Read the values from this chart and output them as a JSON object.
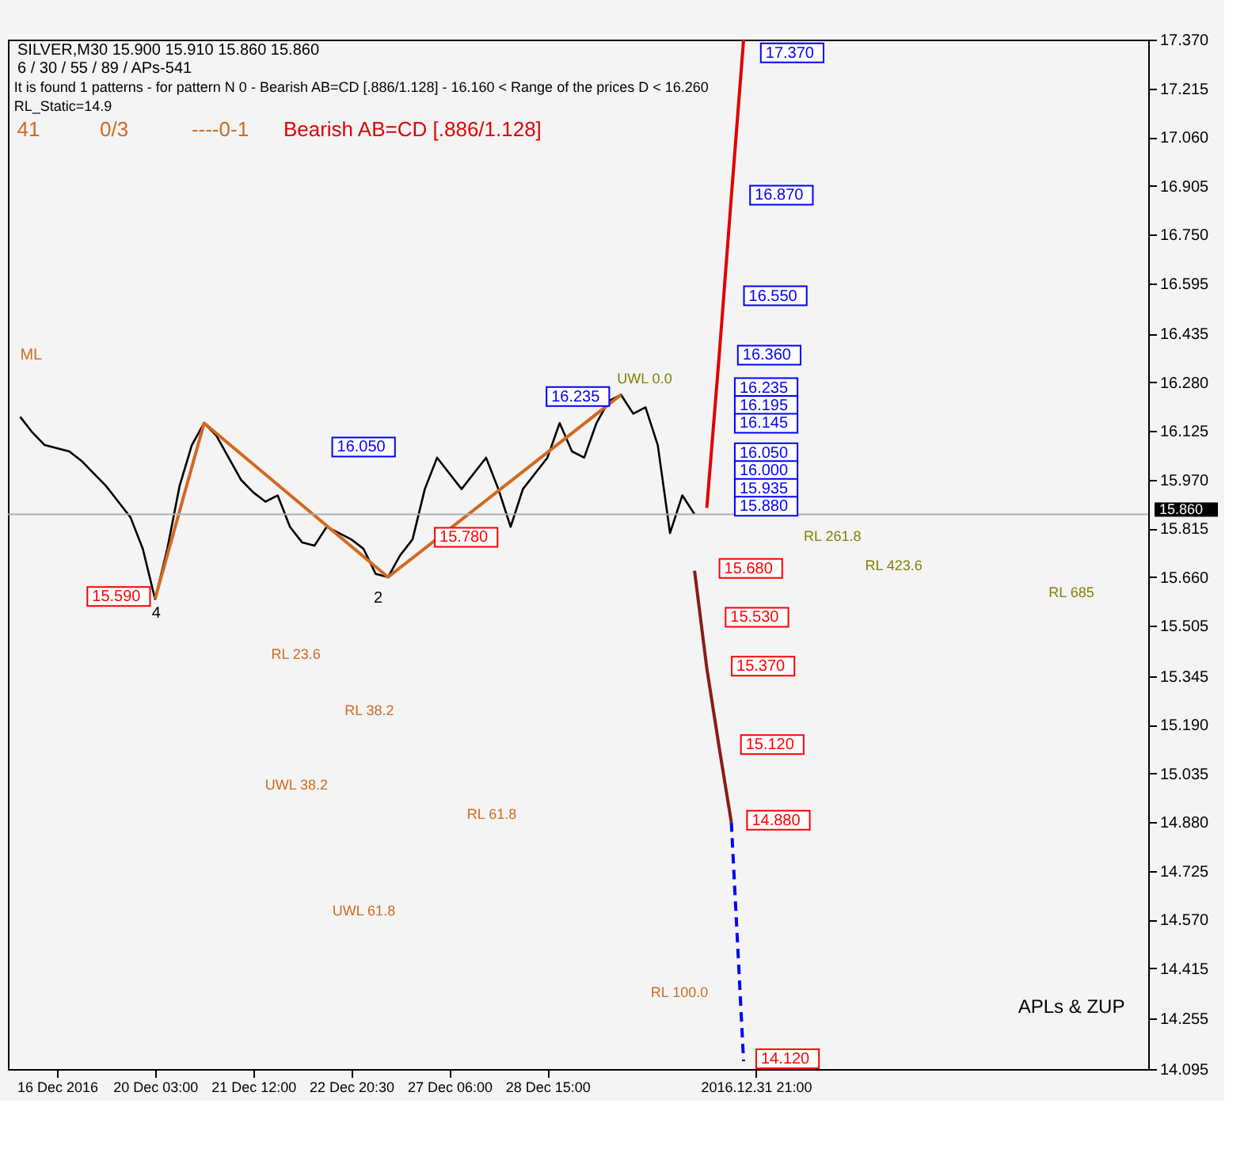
{
  "chart_data": {
    "type": "line",
    "title": "SILVER,M30  15.900 15.910 15.860 15.860",
    "subtitle": "6 / 30 / 55 / 89 / APs-541",
    "categories": [
      null,
      null,
      null,
      null,
      "16 Dec 2016",
      null,
      null,
      null,
      null,
      null,
      null,
      null,
      "20 Dec 03:00",
      null,
      null,
      null,
      null,
      null,
      null,
      null,
      "21 Dec 12:00",
      null,
      null,
      null,
      null,
      null,
      null,
      null,
      "22 Dec 20:30",
      null,
      null,
      null,
      null,
      null,
      null,
      null,
      "27 Dec 06:00",
      null,
      null,
      null,
      null,
      null,
      null,
      null,
      "28 Dec 15:00",
      null,
      null,
      null,
      null,
      null,
      null,
      null,
      null,
      null,
      null,
      null,
      null,
      null,
      null,
      null,
      null,
      "2016.12.31 21:00",
      null,
      null,
      null,
      null,
      null,
      null,
      null,
      null,
      null,
      null,
      null,
      null,
      null,
      null,
      null,
      null,
      null,
      null,
      null,
      null,
      null,
      null,
      null,
      null,
      null,
      null,
      null,
      null,
      null,
      null,
      null,
      null
    ],
    "series": [
      {
        "color": "#000000",
        "line_style": "solid",
        "values": [
          null,
          16.17,
          16.12,
          16.08,
          16.07,
          16.06,
          16.03,
          15.99,
          15.95,
          15.9,
          15.85,
          15.75,
          15.59,
          15.75,
          15.95,
          16.08,
          16.15,
          16.11,
          16.04,
          15.97,
          15.93,
          15.9,
          15.92,
          15.82,
          15.77,
          15.76,
          15.82,
          15.8,
          15.78,
          15.75,
          15.67,
          15.66,
          15.73,
          15.78,
          15.94,
          16.04,
          15.99,
          15.94,
          15.99,
          16.04,
          15.94,
          15.82,
          15.94,
          15.99,
          16.04,
          16.15,
          16.06,
          16.04,
          16.15,
          16.22,
          16.24,
          16.18,
          16.2,
          16.08,
          15.8,
          15.92,
          15.86,
          null,
          null,
          null,
          null,
          null,
          null,
          null,
          null,
          null,
          null,
          null,
          null,
          null,
          null,
          null,
          null,
          null,
          null,
          null,
          null,
          null,
          null,
          null,
          null,
          null,
          null,
          null,
          null,
          null,
          null,
          null,
          null,
          null,
          null,
          null,
          null,
          null
        ]
      },
      {
        "color": "#d2691e",
        "line_style": "solid",
        "values": [
          null,
          null,
          null,
          null,
          null,
          null,
          null,
          null,
          null,
          null,
          null,
          null,
          15.59,
          null,
          null,
          null,
          16.15,
          null,
          null,
          null,
          null,
          null,
          null,
          null,
          null,
          null,
          null,
          null,
          null,
          null,
          null,
          15.66,
          null,
          null,
          null,
          null,
          null,
          null,
          null,
          null,
          null,
          null,
          null,
          null,
          null,
          null,
          null,
          null,
          null,
          null,
          16.24,
          null,
          null,
          null,
          null,
          null,
          null,
          null,
          null,
          null,
          null,
          null,
          null,
          null,
          null,
          null,
          null,
          null,
          null,
          null,
          null,
          null,
          null,
          null,
          null,
          null,
          null,
          null,
          null,
          null,
          null,
          null,
          null,
          null,
          null,
          null,
          null,
          null,
          null,
          null,
          null,
          null,
          null,
          null
        ]
      },
      {
        "color": "#e00000",
        "line_style": "solid",
        "values": [
          null,
          null,
          null,
          null,
          null,
          null,
          null,
          null,
          null,
          null,
          null,
          null,
          null,
          null,
          null,
          null,
          null,
          null,
          null,
          null,
          null,
          null,
          null,
          null,
          null,
          null,
          null,
          null,
          null,
          null,
          null,
          null,
          null,
          null,
          null,
          null,
          null,
          null,
          null,
          null,
          null,
          null,
          null,
          null,
          null,
          null,
          null,
          null,
          null,
          null,
          null,
          null,
          null,
          null,
          null,
          null,
          null,
          15.88,
          16.36,
          16.87,
          17.37,
          null,
          null,
          null,
          null,
          null,
          null,
          null,
          null,
          null,
          null,
          null,
          null,
          null,
          null,
          null,
          null,
          null,
          null,
          null,
          null,
          null,
          null,
          null,
          null,
          null,
          null,
          null,
          null,
          null,
          null,
          null,
          null,
          null
        ]
      },
      {
        "color": "#8b1a1a",
        "line_style": "solid",
        "values": [
          null,
          null,
          null,
          null,
          null,
          null,
          null,
          null,
          null,
          null,
          null,
          null,
          null,
          null,
          null,
          null,
          null,
          null,
          null,
          null,
          null,
          null,
          null,
          null,
          null,
          null,
          null,
          null,
          null,
          null,
          null,
          null,
          null,
          null,
          null,
          null,
          null,
          null,
          null,
          null,
          null,
          null,
          null,
          null,
          null,
          null,
          null,
          null,
          null,
          null,
          null,
          null,
          null,
          null,
          null,
          null,
          15.68,
          15.37,
          15.12,
          14.88,
          null,
          null,
          null,
          null,
          null,
          null,
          null,
          null,
          null,
          null,
          null,
          null,
          null,
          null,
          null,
          null,
          null,
          null,
          null,
          null,
          null,
          null,
          null,
          null,
          null,
          null,
          null,
          null,
          null,
          null,
          null,
          null,
          null,
          null
        ]
      },
      {
        "color": "#0000ff",
        "line_style": "dashed",
        "values": [
          null,
          null,
          null,
          null,
          null,
          null,
          null,
          null,
          null,
          null,
          null,
          null,
          null,
          null,
          null,
          null,
          null,
          null,
          null,
          null,
          null,
          null,
          null,
          null,
          null,
          null,
          null,
          null,
          null,
          null,
          null,
          null,
          null,
          null,
          null,
          null,
          null,
          null,
          null,
          null,
          null,
          null,
          null,
          null,
          null,
          null,
          null,
          null,
          null,
          null,
          null,
          null,
          null,
          null,
          null,
          null,
          null,
          null,
          null,
          14.88,
          14.12,
          null,
          null,
          null,
          null,
          null,
          null,
          null,
          null,
          null,
          null,
          null,
          null,
          null,
          null,
          null,
          null,
          null,
          null,
          null,
          null,
          null,
          null,
          null,
          null,
          null,
          null,
          null,
          null,
          null,
          null,
          null,
          null,
          null
        ]
      }
    ],
    "ylim": [
      14.095,
      17.37
    ],
    "yticks": [
      {
        "value": 17.37,
        "label": "17.370"
      },
      17.215,
      {
        "value": 17.06,
        "label": "17.060"
      },
      16.905,
      {
        "value": 16.75,
        "label": "16.750"
      },
      16.595,
      16.435,
      {
        "value": 16.28,
        "label": "16.280"
      },
      16.125,
      {
        "value": 15.97,
        "label": "15.970"
      },
      15.815,
      {
        "value": 15.66,
        "label": "15.660"
      },
      15.505,
      15.345,
      {
        "value": 15.19,
        "label": "15.190"
      },
      15.035,
      {
        "value": 14.88,
        "label": "14.880"
      },
      14.725,
      {
        "value": 14.57,
        "label": "14.570"
      },
      14.415,
      14.255,
      14.095
    ],
    "ref_lines": [
      {
        "axis": "y",
        "value": 15.86,
        "label": "15.860",
        "color": "#b0b0b0",
        "line_style": "solid"
      }
    ],
    "annotations": [
      "It is found 1 patterns  -  for pattern N 0 - Bearish AB=CD [.886/1.128] - 16.160 < Range of the prices D < 16.260",
      "RL_Static=14.9",
      "41",
      "0/3",
      "----0-1",
      "Bearish AB=CD [.886/1.128]",
      "APLs & ZUP",
      "17.370",
      "16.870",
      "16.550",
      "16.360",
      "16.235",
      "16.195",
      "16.145",
      "16.050",
      "16.000",
      "15.935",
      "15.880",
      "15.680",
      "15.530",
      "15.370",
      "15.120",
      "14.880",
      "14.120",
      "15.590",
      "16.050",
      "15.780",
      "16.235",
      "4",
      "2",
      "ML",
      "RL 23.6",
      "RL 38.2",
      "RL 61.8",
      "RL 100.0",
      "UWL 38.2",
      "UWL 61.8",
      "UWL 0.0",
      "RL 261.8",
      "RL 423.6",
      "RL 685"
    ],
    "grid": false,
    "marker": "none"
  }
}
